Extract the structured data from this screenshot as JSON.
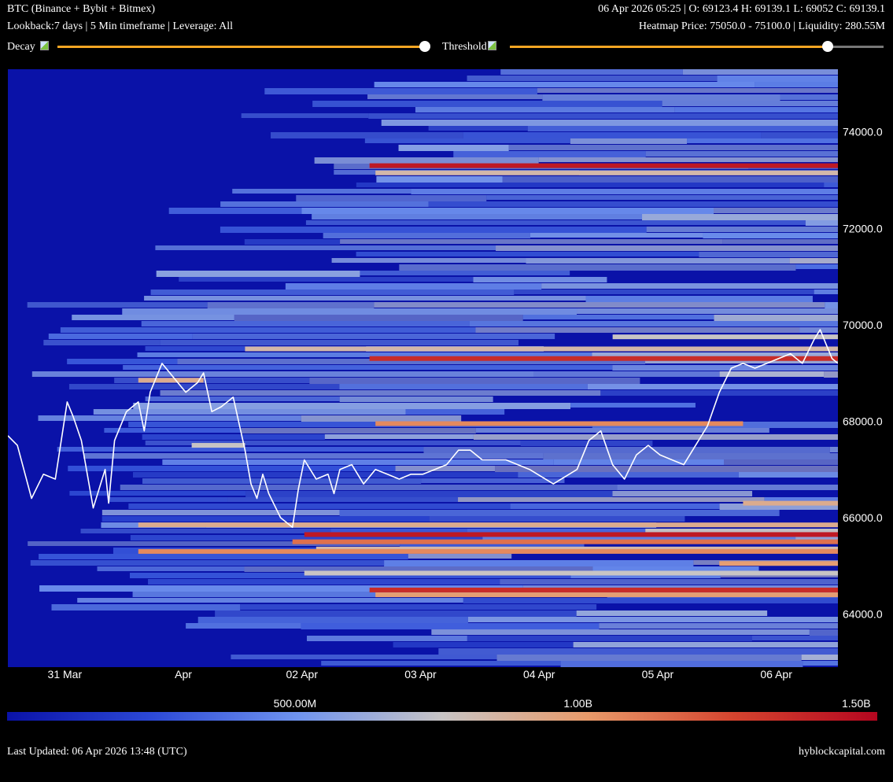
{
  "header": {
    "title": "BTC (Binance + Bybit + Bitmex)",
    "subtitle": "Lookback:7 days | 5 Min timeframe | Leverage: All",
    "ohlc": "06 Apr 2026 05:25 | O: 69123.4 H: 69139.1 L: 69052 C: 69139.1",
    "heatmap_info": "Heatmap Price: 75050.0 - 75100.0 | Liquidity: 280.55M"
  },
  "controls": {
    "decay": {
      "label": "Decay",
      "value": 1.0,
      "icon": "broken-image-icon"
    },
    "threshold": {
      "label": "Threshold",
      "value": 0.85,
      "icon": "broken-image-icon"
    },
    "slider_color": "#f5a623"
  },
  "colorbar": {
    "labels": [
      "500.00M",
      "1.00B",
      "1.50B"
    ],
    "values": [
      500000000,
      1000000000,
      1500000000
    ],
    "max": 1500000000,
    "colors": [
      "#0a12a8",
      "#2c49d6",
      "#6f93ee",
      "#c8c4c4",
      "#e89a6a",
      "#d5452f",
      "#b4061f"
    ]
  },
  "footer": {
    "last_updated": "Last Updated: 06 Apr 2026 13:48 (UTC)",
    "brand": "hyblockcapital.com"
  },
  "chart_data": {
    "type": "heatmap",
    "title": "BTC (Binance + Bybit + Bitmex)",
    "xlabel": "",
    "ylabel": "",
    "x_ticks": [
      "31 Mar",
      "Apr",
      "02 Apr",
      "03 Apr",
      "04 Apr",
      "05 Apr",
      "06 Apr"
    ],
    "x_tick_days": [
      0.48,
      1.48,
      2.48,
      3.48,
      4.48,
      5.48,
      6.48
    ],
    "x_range_days": [
      0,
      7
    ],
    "y_ticks": [
      64000,
      66000,
      68000,
      70000,
      72000,
      74000
    ],
    "y_tick_labels": [
      "64000.0",
      "66000.0",
      "68000.0",
      "70000.0",
      "72000.0",
      "74000.0"
    ],
    "ylim": [
      62900,
      75300
    ],
    "background_color": "#0a12a8",
    "price_series": {
      "name": "",
      "days": [
        0.0,
        0.08,
        0.2,
        0.3,
        0.4,
        0.5,
        0.55,
        0.62,
        0.72,
        0.82,
        0.85,
        0.9,
        1.0,
        1.1,
        1.15,
        1.2,
        1.3,
        1.4,
        1.5,
        1.6,
        1.65,
        1.72,
        1.8,
        1.9,
        2.0,
        2.05,
        2.1,
        2.15,
        2.2,
        2.3,
        2.4,
        2.45,
        2.5,
        2.55,
        2.6,
        2.7,
        2.75,
        2.8,
        2.9,
        3.0,
        3.1,
        3.2,
        3.3,
        3.4,
        3.5,
        3.6,
        3.7,
        3.8,
        3.9,
        4.0,
        4.2,
        4.4,
        4.6,
        4.8,
        4.9,
        5.0,
        5.1,
        5.2,
        5.3,
        5.4,
        5.5,
        5.6,
        5.7,
        5.8,
        5.9,
        6.0,
        6.1,
        6.2,
        6.3,
        6.4,
        6.5,
        6.6,
        6.7,
        6.8,
        6.85,
        6.9,
        6.95,
        7.0
      ],
      "price": [
        67700,
        67500,
        66400,
        66900,
        66800,
        68400,
        68100,
        67600,
        66200,
        67000,
        66300,
        67600,
        68200,
        68400,
        67800,
        68600,
        69200,
        68900,
        68600,
        68800,
        69000,
        68200,
        68300,
        68500,
        67400,
        66700,
        66400,
        66900,
        66500,
        66000,
        65800,
        66600,
        67200,
        67000,
        66800,
        66900,
        66500,
        67000,
        67100,
        66700,
        67000,
        66900,
        66800,
        66900,
        66900,
        67000,
        67100,
        67400,
        67400,
        67200,
        67200,
        67000,
        66700,
        67000,
        67600,
        67800,
        67100,
        66800,
        67300,
        67500,
        67300,
        67200,
        67100,
        67500,
        67900,
        68600,
        69100,
        69200,
        69100,
        69200,
        69300,
        69400,
        69200,
        69700,
        69900,
        69600,
        69300,
        69200
      ]
    },
    "liquidity_levels": [
      {
        "price": 73300,
        "start_day": 3.05,
        "end_day": 7.0,
        "intensity": 0.95
      },
      {
        "price": 73150,
        "start_day": 3.1,
        "end_day": 7.0,
        "intensity": 0.55
      },
      {
        "price": 69300,
        "start_day": 3.05,
        "end_day": 7.0,
        "intensity": 0.9
      },
      {
        "price": 69500,
        "start_day": 2.0,
        "end_day": 7.0,
        "intensity": 0.55
      },
      {
        "price": 69750,
        "start_day": 5.1,
        "end_day": 7.0,
        "intensity": 0.5
      },
      {
        "price": 67950,
        "start_day": 3.1,
        "end_day": 6.2,
        "intensity": 0.7
      },
      {
        "price": 68850,
        "start_day": 1.1,
        "end_day": 1.65,
        "intensity": 0.6
      },
      {
        "price": 67500,
        "start_day": 1.55,
        "end_day": 2.0,
        "intensity": 0.5
      },
      {
        "price": 66300,
        "start_day": 6.2,
        "end_day": 7.0,
        "intensity": 0.6
      },
      {
        "price": 65850,
        "start_day": 1.1,
        "end_day": 7.0,
        "intensity": 0.6
      },
      {
        "price": 65650,
        "start_day": 2.5,
        "end_day": 7.0,
        "intensity": 0.95
      },
      {
        "price": 65500,
        "start_day": 2.4,
        "end_day": 7.0,
        "intensity": 0.75
      },
      {
        "price": 65350,
        "start_day": 2.6,
        "end_day": 7.0,
        "intensity": 0.55
      },
      {
        "price": 65300,
        "start_day": 1.1,
        "end_day": 7.0,
        "intensity": 0.7
      },
      {
        "price": 65050,
        "start_day": 6.0,
        "end_day": 7.0,
        "intensity": 0.65
      },
      {
        "price": 64850,
        "start_day": 2.5,
        "end_day": 7.0,
        "intensity": 0.5
      },
      {
        "price": 64500,
        "start_day": 3.05,
        "end_day": 7.0,
        "intensity": 0.9
      },
      {
        "price": 64400,
        "start_day": 3.1,
        "end_day": 7.0,
        "intensity": 0.65
      }
    ]
  }
}
